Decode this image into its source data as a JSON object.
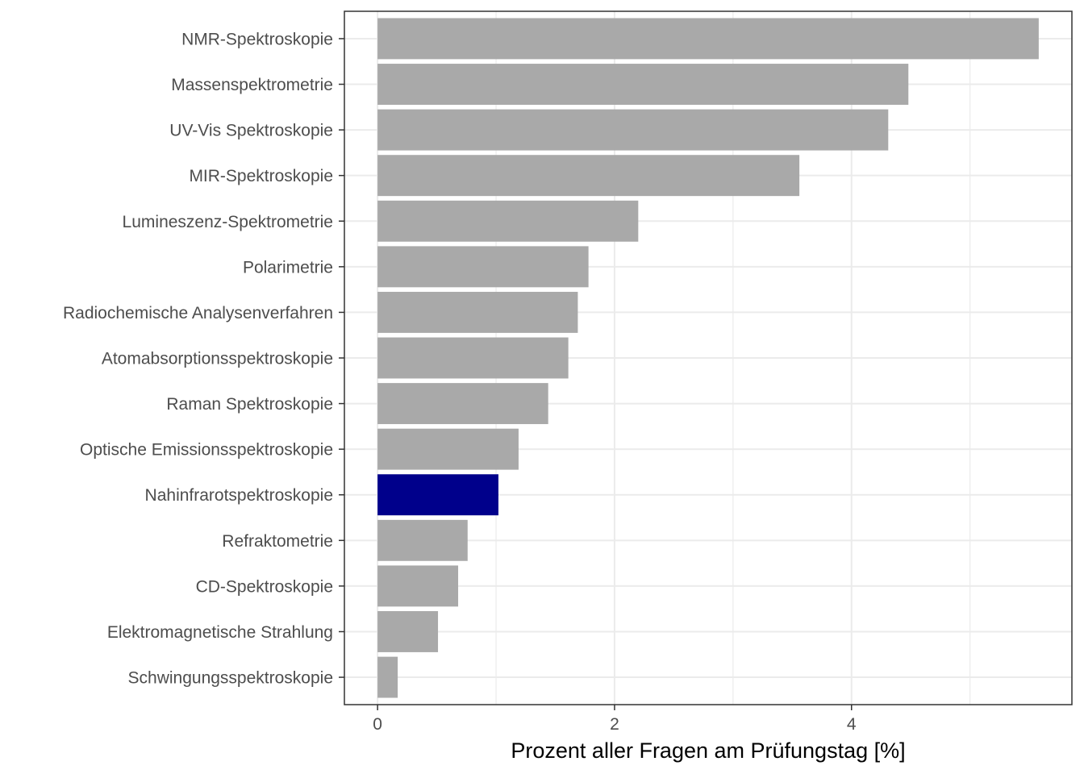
{
  "chart_data": {
    "type": "bar",
    "orientation": "horizontal",
    "categories": [
      "NMR-Spektroskopie",
      "Massenspektrometrie",
      "UV-Vis Spektroskopie",
      "MIR-Spektroskopie",
      "Lumineszenz-Spektrometrie",
      "Polarimetrie",
      "Radiochemische Analysenverfahren",
      "Atomabsorptionsspektroskopie",
      "Raman Spektroskopie",
      "Optische Emissionsspektroskopie",
      "Nahinfrarotspektroskopie",
      "Refraktometrie",
      "CD-Spektroskopie",
      "Elektromagnetische Strahlung",
      "Schwingungsspektroskopie"
    ],
    "values": [
      5.58,
      4.48,
      4.31,
      3.56,
      2.2,
      1.78,
      1.69,
      1.61,
      1.44,
      1.19,
      1.02,
      0.76,
      0.68,
      0.51,
      0.17
    ],
    "highlight_category": "Nahinfrarotspektroskopie",
    "colors": {
      "default": "#a9a9a9",
      "highlight": "#00008b",
      "grid": "#ebebeb",
      "border": "#333333"
    },
    "xlabel": "Prozent aller Fragen am Prüfungstag [%]",
    "ylabel": "",
    "title": "",
    "xlim": [
      -0.28,
      5.86
    ],
    "xticks": [
      0,
      2,
      4
    ],
    "minor_xticks": [
      1,
      3,
      5
    ],
    "grid": true,
    "legend": "none"
  }
}
